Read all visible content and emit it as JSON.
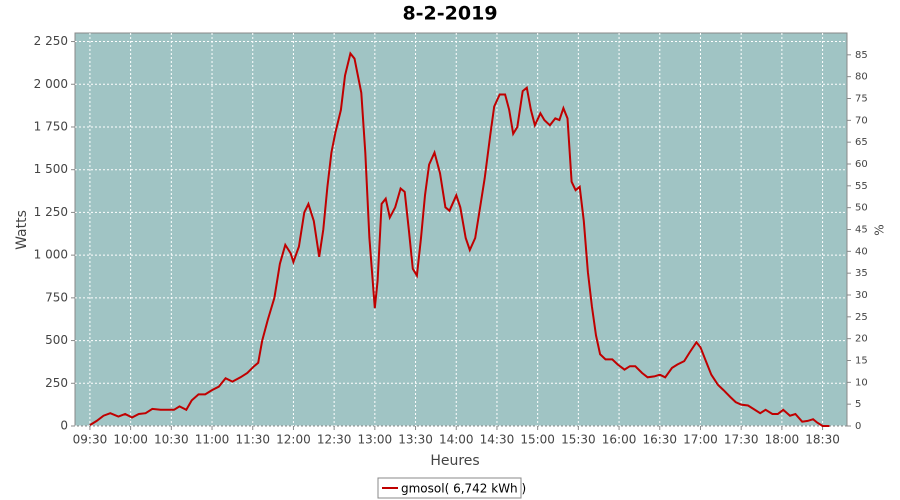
{
  "chart_data": {
    "type": "line",
    "title": "8-2-2019",
    "x_label": "Heures",
    "y_label": "Watts",
    "y2_label": "%",
    "x": [
      "09:30",
      "09:35",
      "09:40",
      "09:45",
      "09:51",
      "09:56",
      "10:01",
      "10:06",
      "10:11",
      "10:16",
      "10:22",
      "10:27",
      "10:32",
      "10:36",
      "10:41",
      "10:45",
      "10:50",
      "10:55",
      "11:00",
      "11:05",
      "11:10",
      "11:15",
      "11:21",
      "11:26",
      "11:31",
      "11:34",
      "11:37",
      "11:41",
      "11:46",
      "11:50",
      "11:54",
      "11:58",
      "12:00",
      "12:04",
      "12:08",
      "12:11",
      "12:15",
      "12:19",
      "12:22",
      "12:25",
      "12:28",
      "12:31",
      "12:35",
      "12:38",
      "12:42",
      "12:45",
      "12:50",
      "12:53",
      "12:56",
      "13:00",
      "13:02",
      "13:05",
      "13:08",
      "13:11",
      "13:15",
      "13:19",
      "13:22",
      "13:25",
      "13:28",
      "13:31",
      "13:34",
      "13:37",
      "13:40",
      "13:44",
      "13:48",
      "13:52",
      "13:55",
      "14:00",
      "14:03",
      "14:07",
      "14:10",
      "14:14",
      "14:17",
      "14:21",
      "14:25",
      "14:28",
      "14:32",
      "14:36",
      "14:39",
      "14:42",
      "14:45",
      "14:49",
      "14:52",
      "14:55",
      "14:58",
      "15:02",
      "15:05",
      "15:09",
      "15:13",
      "15:16",
      "15:19",
      "15:22",
      "15:25",
      "15:28",
      "15:31",
      "15:34",
      "15:37",
      "15:40",
      "15:43",
      "15:46",
      "15:50",
      "15:55",
      "15:59",
      "16:04",
      "16:08",
      "16:12",
      "16:17",
      "16:21",
      "16:26",
      "16:30",
      "16:34",
      "16:39",
      "16:43",
      "16:48",
      "16:52",
      "16:57",
      "17:00",
      "17:04",
      "17:08",
      "17:13",
      "17:17",
      "17:22",
      "17:26",
      "17:30",
      "17:35",
      "17:39",
      "17:44",
      "17:48",
      "17:53",
      "17:57",
      "18:01",
      "18:06",
      "18:10",
      "18:15",
      "18:19",
      "18:23",
      "18:26",
      "18:30",
      "18:35"
    ],
    "series": [
      {
        "name": "gmosol( 6,742 kWh )",
        "color": "#c00000",
        "values": [
          5,
          30,
          60,
          75,
          55,
          70,
          50,
          70,
          75,
          100,
          95,
          95,
          95,
          115,
          95,
          150,
          185,
          185,
          210,
          230,
          280,
          260,
          285,
          310,
          350,
          370,
          500,
          620,
          750,
          950,
          1060,
          1010,
          960,
          1050,
          1250,
          1300,
          1200,
          990,
          1150,
          1400,
          1600,
          1720,
          1850,
          2050,
          2180,
          2150,
          1950,
          1600,
          1100,
          690,
          850,
          1300,
          1330,
          1220,
          1280,
          1390,
          1370,
          1150,
          920,
          880,
          1100,
          1350,
          1530,
          1600,
          1480,
          1280,
          1260,
          1350,
          1280,
          1100,
          1030,
          1100,
          1250,
          1450,
          1700,
          1870,
          1940,
          1940,
          1850,
          1710,
          1750,
          1960,
          1980,
          1850,
          1760,
          1830,
          1790,
          1760,
          1800,
          1790,
          1860,
          1800,
          1430,
          1380,
          1400,
          1200,
          900,
          700,
          530,
          420,
          390,
          390,
          360,
          330,
          350,
          350,
          310,
          285,
          290,
          300,
          285,
          340,
          360,
          380,
          430,
          490,
          460,
          380,
          300,
          240,
          210,
          170,
          140,
          125,
          120,
          100,
          75,
          95,
          70,
          70,
          95,
          60,
          70,
          25,
          30,
          40,
          20,
          0,
          0
        ]
      }
    ],
    "xlim": [
      "09:19",
      "18:48"
    ],
    "xticks": [
      "09:30",
      "10:00",
      "10:30",
      "11:00",
      "11:30",
      "12:00",
      "12:30",
      "13:00",
      "13:30",
      "14:00",
      "14:30",
      "15:00",
      "15:30",
      "16:00",
      "16:30",
      "17:00",
      "17:30",
      "18:00",
      "18:30"
    ],
    "ylim": [
      0,
      2300
    ],
    "yticks": [
      0,
      250,
      500,
      750,
      {
        "value": 1000,
        "label": "1 000"
      },
      {
        "value": 1250,
        "label": "1 250"
      },
      {
        "value": 1500,
        "label": "1 500"
      },
      {
        "value": 1750,
        "label": "1 750"
      },
      {
        "value": 2000,
        "label": "2 000"
      },
      {
        "value": 2250,
        "label": "2 250"
      }
    ],
    "y2lim": [
      0,
      90
    ],
    "y2ticks": [
      0,
      5,
      10,
      15,
      20,
      25,
      30,
      35,
      40,
      45,
      50,
      55,
      60,
      65,
      70,
      75,
      80,
      85
    ],
    "grid": true,
    "plot_background": "#a0c4c4",
    "legend": "bottom"
  }
}
